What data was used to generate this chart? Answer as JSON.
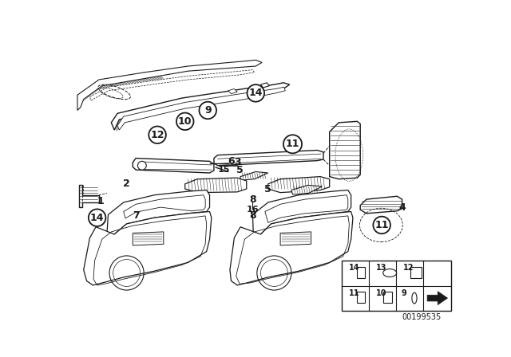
{
  "bg_color": "#ffffff",
  "line_color": "#1a1a1a",
  "diagram_number": "00199535",
  "figsize": [
    6.4,
    4.48
  ],
  "dpi": 100
}
